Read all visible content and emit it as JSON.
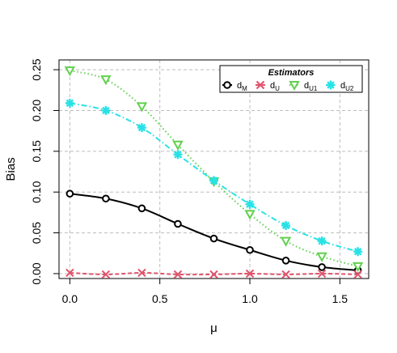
{
  "chart_data": {
    "type": "line",
    "title": "",
    "xlabel": "μ",
    "ylabel": "Bias",
    "xlim": [
      -0.06,
      1.66
    ],
    "ylim": [
      -0.006,
      0.262
    ],
    "x_ticks": [
      "0.0",
      "0.5",
      "1.0",
      "1.5"
    ],
    "x_tick_values": [
      0,
      0.5,
      1.0,
      1.5
    ],
    "y_ticks": [
      "0.00",
      "0.05",
      "0.10",
      "0.15",
      "0.20",
      "0.25"
    ],
    "y_tick_values": [
      0,
      0.05,
      0.1,
      0.15,
      0.2,
      0.25
    ],
    "grid": true,
    "legend_position": "top-right",
    "legend_title": "Estimators",
    "x": [
      0,
      0.2,
      0.4,
      0.6,
      0.8,
      1.0,
      1.2,
      1.4,
      1.6
    ],
    "series": [
      {
        "name": "d",
        "subscript": "M",
        "color": "#000000",
        "marker": "circle",
        "dash": "solid",
        "values": [
          0.098,
          0.092,
          0.08,
          0.061,
          0.043,
          0.029,
          0.016,
          0.008,
          0.004
        ]
      },
      {
        "name": "d",
        "subscript": "U",
        "color": "#df536b",
        "marker": "cross",
        "dash": "dashed",
        "values": [
          0.001,
          -0.001,
          0.001,
          -0.001,
          -0.001,
          0.0,
          -0.001,
          0.0,
          -0.001
        ]
      },
      {
        "name": "d",
        "subscript": "U1",
        "color": "#61d04f",
        "marker": "triangle-down",
        "dash": "dotted",
        "values": [
          0.249,
          0.238,
          0.205,
          0.158,
          0.113,
          0.073,
          0.04,
          0.021,
          0.009
        ]
      },
      {
        "name": "d",
        "subscript": "U2",
        "color": "#28e2e5",
        "marker": "star",
        "dash": "dotdash",
        "values": [
          0.209,
          0.2,
          0.179,
          0.146,
          0.114,
          0.085,
          0.059,
          0.04,
          0.027
        ]
      }
    ]
  }
}
